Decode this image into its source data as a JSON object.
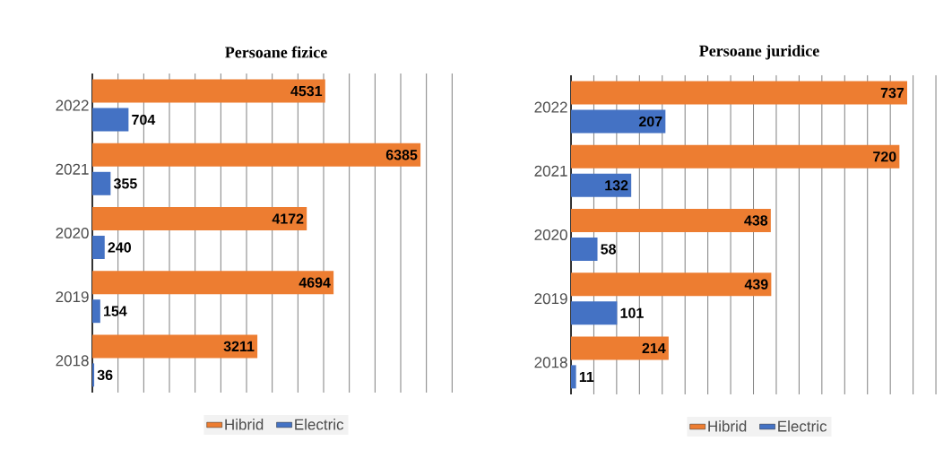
{
  "chart_data": [
    {
      "type": "bar",
      "orientation": "horizontal",
      "title": "Persoane fizice",
      "categories": [
        "2022",
        "2021",
        "2020",
        "2019",
        "2018"
      ],
      "series": [
        {
          "name": "Hibrid",
          "color": "#ed7d31",
          "values": [
            4531,
            6385,
            4172,
            4694,
            3211
          ]
        },
        {
          "name": "Electric",
          "color": "#4472c4",
          "values": [
            704,
            355,
            240,
            154,
            36
          ]
        }
      ],
      "tick_labels": "y",
      "grid": "x",
      "legend": "bottom",
      "data_labels": true
    },
    {
      "type": "bar",
      "orientation": "horizontal",
      "title": "Persoane juridice",
      "categories": [
        "2022",
        "2021",
        "2020",
        "2019",
        "2018"
      ],
      "series": [
        {
          "name": "Hibrid",
          "color": "#ed7d31",
          "values": [
            737,
            720,
            438,
            439,
            214
          ]
        },
        {
          "name": "Electric",
          "color": "#4472c4",
          "values": [
            207,
            132,
            58,
            101,
            11
          ]
        }
      ],
      "tick_labels": "y",
      "grid": "x",
      "legend": "bottom",
      "data_labels": true
    }
  ]
}
